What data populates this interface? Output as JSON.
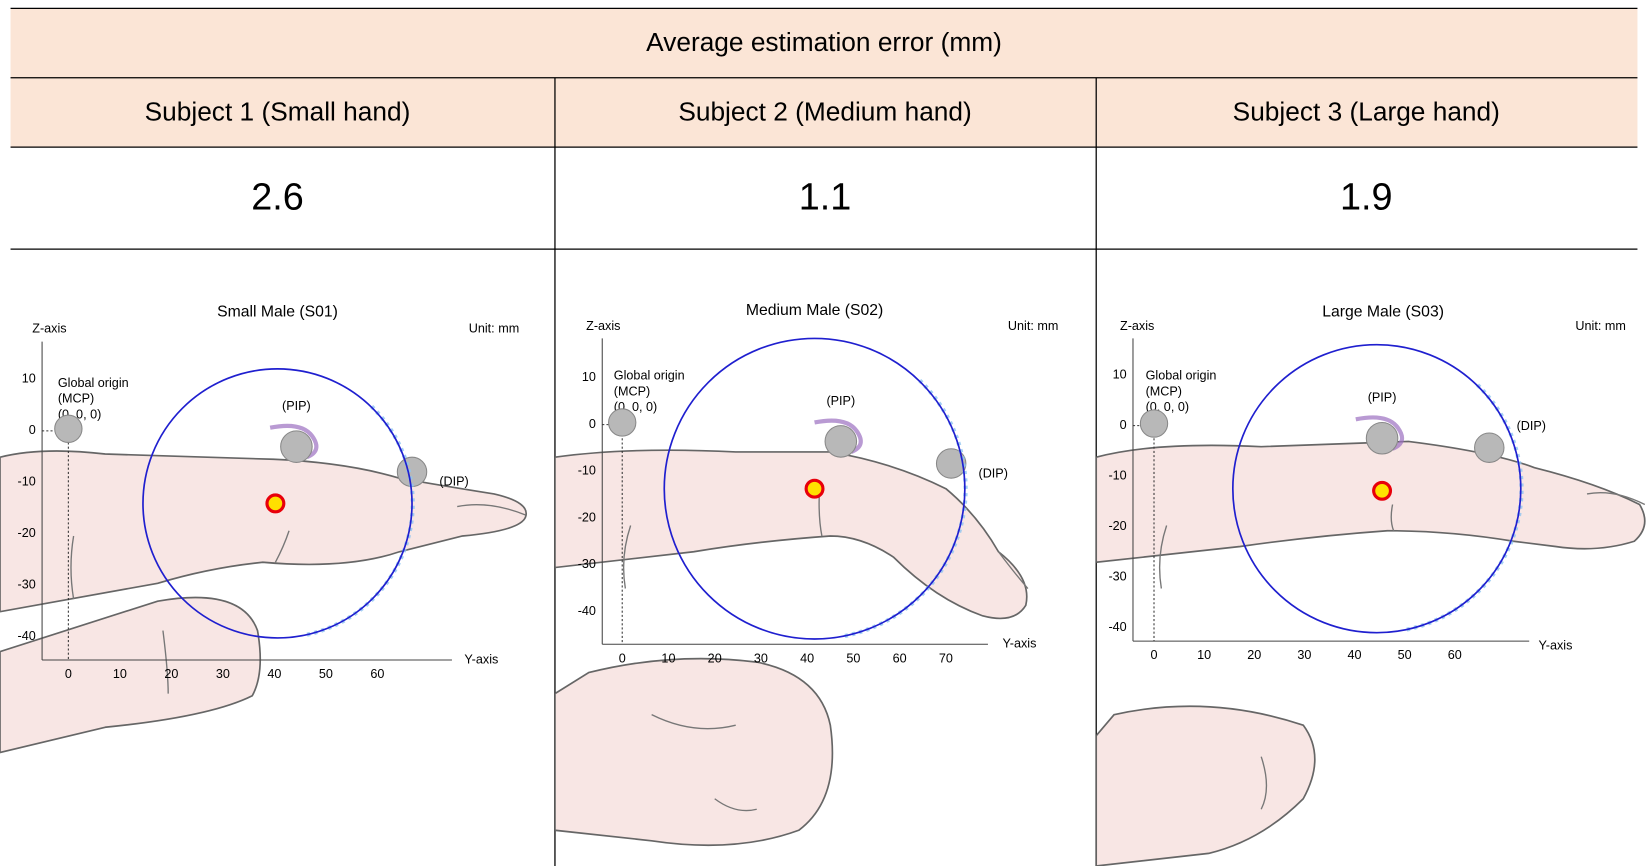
{
  "header": {
    "title": "Average estimation error (mm)"
  },
  "table": {
    "columns": [
      "Subject 1 (Small hand)",
      "Subject 2 (Medium hand)",
      "Subject 3 (Large hand)"
    ],
    "values": [
      2.6,
      1.1,
      1.9
    ]
  },
  "panels": [
    {
      "title": "Small Male (S01)",
      "z_label": "Z-axis",
      "unit": "Unit: mm",
      "origin_label": [
        "Global origin",
        "(MCP)",
        "(0, 0, 0)"
      ],
      "pip": "(PIP)",
      "dip": "(DIP)",
      "y_label": "Y-axis",
      "zticks": [
        10,
        0,
        -10,
        -20,
        -30,
        -40
      ],
      "yticks": [
        0,
        10,
        20,
        30,
        40,
        50,
        60
      ]
    },
    {
      "title": "Medium Male (S02)",
      "z_label": "Z-axis",
      "unit": "Unit: mm",
      "origin_label": [
        "Global origin",
        "(MCP)",
        "(0, 0, 0)"
      ],
      "pip": "(PIP)",
      "dip": "(DIP)",
      "y_label": "Y-axis",
      "zticks": [
        10,
        0,
        -10,
        -20,
        -30,
        -40
      ],
      "yticks": [
        0,
        10,
        20,
        30,
        40,
        50,
        60,
        70
      ]
    },
    {
      "title": "Large Male (S03)",
      "z_label": "Z-axis",
      "unit": "Unit: mm",
      "origin_label": [
        "Global origin",
        "(MCP)",
        "(0, 0, 0)"
      ],
      "pip": "(PIP)",
      "dip": "(DIP)",
      "y_label": "Y-axis",
      "zticks": [
        10,
        0,
        -10,
        -20,
        -30,
        -40
      ],
      "yticks": [
        0,
        10,
        20,
        30,
        40,
        50,
        60
      ]
    }
  ]
}
